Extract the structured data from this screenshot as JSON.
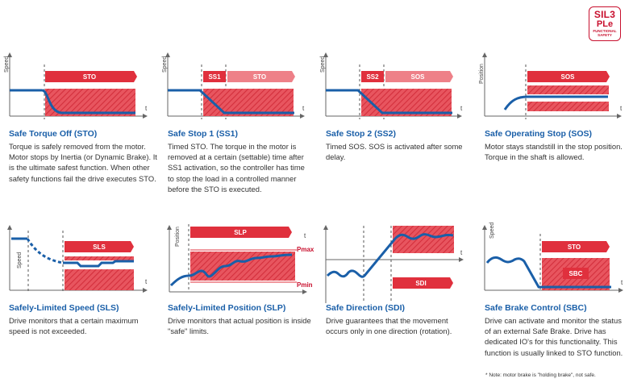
{
  "badge": {
    "line1": "SIL3",
    "line2": "PLe",
    "line3": "FUNCTIONAL",
    "line4": "SAFETY"
  },
  "axis": {
    "speed": "Speed",
    "position": "Position",
    "t": "t"
  },
  "panels": [
    {
      "id": "sto",
      "title": "Safe Torque Off (STO)",
      "desc": "Torque is safely removed from the motor. Motor stops by Inertia (or Dynamic Brake). It is the ultimate safest function. When other safety functions fail the drive executes STO.",
      "bars": [
        "STO"
      ]
    },
    {
      "id": "ss1",
      "title": "Safe Stop 1 (SS1)",
      "desc": "Timed STO. The torque in the motor is removed at a certain (settable) time after SS1 activation, so the controller has time to stop the load in a controlled manner before the  STO is executed.",
      "bars": [
        "SS1",
        "STO"
      ]
    },
    {
      "id": "ss2",
      "title": "Safe Stop 2 (SS2)",
      "desc": "Timed SOS. SOS is activated after some delay.",
      "bars": [
        "SS2",
        "SOS"
      ]
    },
    {
      "id": "sos",
      "title": "Safe Operating Stop (SOS)",
      "desc": "Motor stays standstill in the stop position. Torque in the shaft is allowed.",
      "bars": [
        "SOS"
      ]
    },
    {
      "id": "sls",
      "title": "Safely-Limited Speed (SLS)",
      "desc": "Drive monitors that a certain maximum speed is not exceeded.",
      "bars": [
        "SLS"
      ]
    },
    {
      "id": "slp",
      "title": "Safely-Limited Position (SLP)",
      "desc": "Drive monitors that actual position is inside \"safe\" limits.",
      "bars": [
        "SLP"
      ],
      "pmax": "Pmax",
      "pmin": "Pmin"
    },
    {
      "id": "sdi",
      "title": "Safe Direction (SDI)",
      "desc": "Drive guarantees that the movement occurs only in one direction (rotation).",
      "bars": [
        "SDI"
      ]
    },
    {
      "id": "sbc",
      "title": "Safe Brake Control (SBC)",
      "desc": "Drive can activate and monitor the status of an external Safe Brake. Drive has dedicated IO's for this functionality. This function is usually linked to STO function.",
      "bars": [
        "STO",
        "SBC"
      ]
    }
  ],
  "note": "* Note: motor brake is \"holding brake\", not safe."
}
